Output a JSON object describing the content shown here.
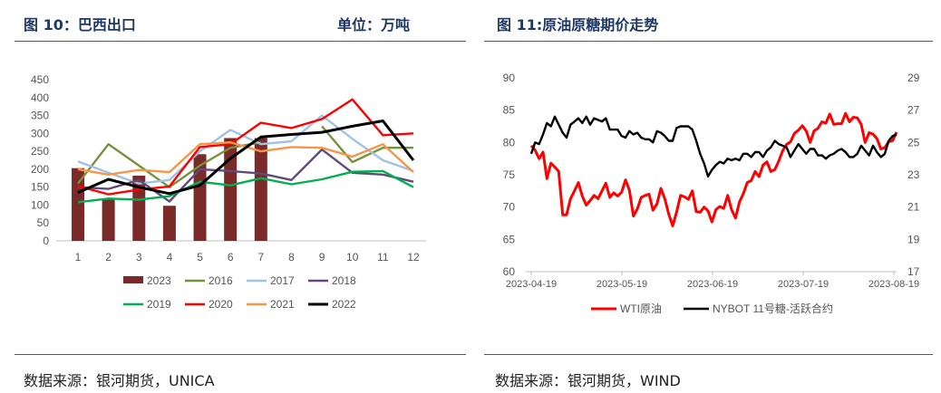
{
  "left": {
    "header": "图 10：巴西出口",
    "unit": "单位：万吨",
    "source": "数据来源：银河期货，UNICA"
  },
  "right": {
    "header": "图 11:原油原糖期价走势",
    "source": "数据来源：银河期货，WIND"
  },
  "colors": {
    "header": "#1f3864",
    "s2023": "#7b2a2a",
    "s2016": "#76923c",
    "s2017": "#9dc3e6",
    "s2018": "#604a7b",
    "s2019": "#00b050",
    "s2020": "#ff0000",
    "s2021": "#f79646",
    "s2022": "#000000"
  },
  "chart_data": [
    {
      "type": "bar+line",
      "title": "巴西出口",
      "unit": "万吨",
      "categories": [
        "1",
        "2",
        "3",
        "4",
        "5",
        "6",
        "7",
        "8",
        "9",
        "10",
        "11",
        "12"
      ],
      "ylim": [
        0,
        450
      ],
      "yticks": [
        0,
        50,
        100,
        150,
        200,
        250,
        300,
        350,
        400,
        450
      ],
      "bar_series": {
        "name": "2023",
        "values": [
          203,
          115,
          182,
          98,
          242,
          287,
          287
        ]
      },
      "series": [
        {
          "name": "2016",
          "values": [
            160,
            270,
            210,
            150,
            210,
            260,
            275,
            null,
            320,
            220,
            260,
            260
          ]
        },
        {
          "name": "2017",
          "values": [
            222,
            190,
            160,
            170,
            250,
            310,
            270,
            278,
            350,
            285,
            225,
            195
          ]
        },
        {
          "name": "2018",
          "values": [
            150,
            145,
            170,
            110,
            200,
            195,
            188,
            170,
            255,
            190,
            185,
            165
          ]
        },
        {
          "name": "2019",
          "values": [
            108,
            118,
            115,
            125,
            165,
            155,
            175,
            158,
            172,
            193,
            195,
            150
          ]
        },
        {
          "name": "2020",
          "values": [
            153,
            130,
            143,
            152,
            262,
            270,
            330,
            315,
            340,
            395,
            295,
            300
          ]
        },
        {
          "name": "2021",
          "values": [
            200,
            185,
            198,
            192,
            270,
            275,
            250,
            262,
            260,
            235,
            270,
            192
          ]
        },
        {
          "name": "2022",
          "values": [
            135,
            172,
            150,
            132,
            155,
            230,
            290,
            297,
            303,
            320,
            335,
            225
          ]
        }
      ],
      "legend": [
        "2023",
        "2016",
        "2017",
        "2018",
        "2019",
        "2020",
        "2021",
        "2022"
      ],
      "legend_position": "bottom"
    },
    {
      "type": "line",
      "title": "原油原糖期价走势",
      "x_ticks": [
        "2023-04-19",
        "2023-05-19",
        "2023-06-19",
        "2023-07-19",
        "2023-08-19"
      ],
      "y_left": {
        "ylim": [
          60,
          90
        ],
        "ticks": [
          60,
          65,
          70,
          75,
          80,
          85,
          90
        ]
      },
      "y_right": {
        "ylim": [
          17,
          29
        ],
        "ticks": [
          17,
          19,
          21,
          23,
          25,
          27,
          29
        ]
      },
      "series": [
        {
          "name": "WTI原油",
          "axis": "left",
          "values": [
            79.5,
            78.8,
            77.5,
            78.5,
            74.4,
            76.8,
            76.2,
            75.5,
            68.8,
            68.8,
            71.3,
            72.5,
            73.8,
            71.7,
            70.3,
            71.0,
            71.8,
            71.3,
            72.5,
            73.7,
            71.5,
            72.2,
            71.7,
            72.3,
            74.2,
            72.6,
            68.6,
            69.7,
            71.5,
            71.8,
            72.0,
            69.5,
            70.5,
            72.9,
            71.3,
            68.9,
            67.1,
            69.2,
            71.8,
            71.6,
            71.2,
            72.5,
            69.3,
            69.2,
            70.0,
            69.4,
            67.7,
            69.6,
            70.1,
            69.8,
            71.8,
            69.6,
            68.3,
            70.8,
            72.1,
            73.8,
            74.1,
            75.5,
            74.7,
            76.5,
            77.0,
            75.5,
            75.8,
            77.1,
            78.7,
            79.7,
            80.1,
            81.4,
            81.9,
            82.6,
            81.8,
            80.0,
            81.8,
            82.2,
            83.2,
            83.0,
            84.4,
            82.8,
            82.9,
            82.9,
            84.5,
            83.2,
            83.9,
            83.8,
            82.8,
            80.0,
            81.5,
            81.3,
            80.6,
            79.0,
            79.2,
            80.1,
            80.3,
            81.6
          ]
        },
        {
          "name": "NYBOT 11号糖-活跃合约",
          "axis": "right",
          "values": [
            24.3,
            25.0,
            24.9,
            25.5,
            26.2,
            26.0,
            26.6,
            26.1,
            25.6,
            25.3,
            26.1,
            26.3,
            26.5,
            26.2,
            26.6,
            26.1,
            26.5,
            26.4,
            26.3,
            26.5,
            25.8,
            25.8,
            25.8,
            25.4,
            25.3,
            25.7,
            25.5,
            25.6,
            25.3,
            25.2,
            25.2,
            25.0,
            25.7,
            25.6,
            25.4,
            25.1,
            25.1,
            25.9,
            26.0,
            26.0,
            26.0,
            25.8,
            25.1,
            24.3,
            23.7,
            22.9,
            23.3,
            23.6,
            23.8,
            23.7,
            24.0,
            23.9,
            24.0,
            23.9,
            24.3,
            24.3,
            24.1,
            24.4,
            24.4,
            24.1,
            24.5,
            24.7,
            25.1,
            24.9,
            24.8,
            24.7,
            24.1,
            24.5,
            24.9,
            24.6,
            24.3,
            24.6,
            24.6,
            24.2,
            24.2,
            24.0,
            24.2,
            24.3,
            24.5,
            24.6,
            24.4,
            24.1,
            24.1,
            24.3,
            24.8,
            24.5,
            24.2,
            24.8,
            24.4,
            24.1,
            24.3,
            25.1,
            25.4,
            25.5
          ]
        }
      ],
      "legend": [
        "WTI原油",
        "NYBOT 11号糖-活跃合约"
      ],
      "legend_position": "bottom"
    }
  ]
}
